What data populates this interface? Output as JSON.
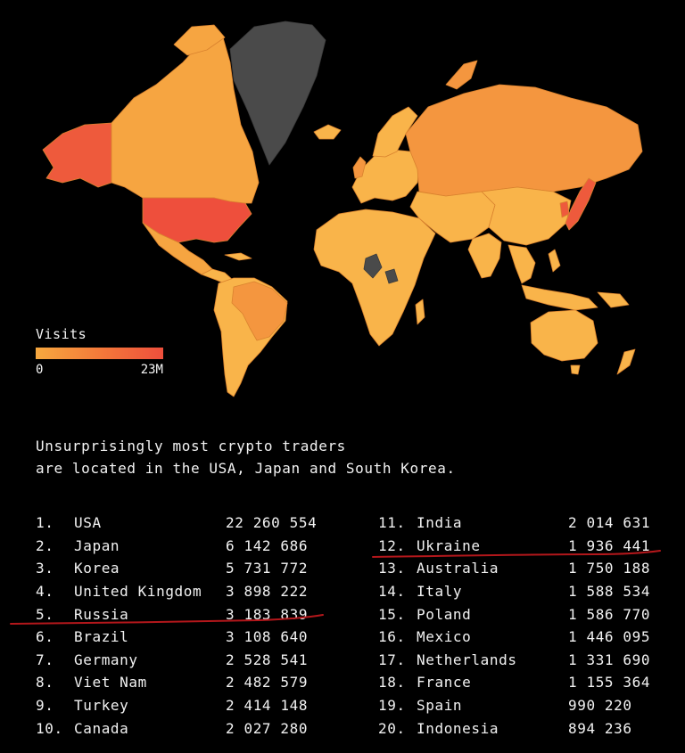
{
  "legend": {
    "title": "Visits",
    "min_label": "0",
    "max_label": "23M",
    "gradient_colors": [
      "#f6a83f",
      "#f47a3a",
      "#ee4f3c"
    ]
  },
  "map_colors": {
    "ocean": "#000000",
    "low": "#f9b44a",
    "mid": "#f4963f",
    "high": "#ee4f3c",
    "no_data": "#4a4a4a",
    "border": "#d9822e"
  },
  "caption": {
    "line1": "Unsurprisingly most crypto traders",
    "line2": "are located in the USA, Japan and South Korea."
  },
  "rankings": {
    "left": [
      {
        "rank": "1.",
        "country": "USA",
        "visits": "22 260 554"
      },
      {
        "rank": "2.",
        "country": "Japan",
        "visits": "6 142 686"
      },
      {
        "rank": "3.",
        "country": "Korea",
        "visits": "5 731 772"
      },
      {
        "rank": "4.",
        "country": "United Kingdom",
        "visits": "3 898 222"
      },
      {
        "rank": "5.",
        "country": "Russia",
        "visits": "3 183 839"
      },
      {
        "rank": "6.",
        "country": "Brazil",
        "visits": "3 108 640"
      },
      {
        "rank": "7.",
        "country": "Germany",
        "visits": "2 528 541"
      },
      {
        "rank": "8.",
        "country": "Viet Nam",
        "visits": "2 482 579"
      },
      {
        "rank": "9.",
        "country": "Turkey",
        "visits": "2 414 148"
      },
      {
        "rank": "10.",
        "country": "Canada",
        "visits": "2 027 280"
      }
    ],
    "right": [
      {
        "rank": "11.",
        "country": "India",
        "visits": "2 014 631"
      },
      {
        "rank": "12.",
        "country": "Ukraine",
        "visits": "1 936 441"
      },
      {
        "rank": "13.",
        "country": "Australia",
        "visits": "1 750 188"
      },
      {
        "rank": "14.",
        "country": "Italy",
        "visits": "1 588 534"
      },
      {
        "rank": "15.",
        "country": "Poland",
        "visits": "1 586 770"
      },
      {
        "rank": "16.",
        "country": "Mexico",
        "visits": "1 446 095"
      },
      {
        "rank": "17.",
        "country": "Netherlands",
        "visits": "1 331 690"
      },
      {
        "rank": "18.",
        "country": "France",
        "visits": "1 155 364"
      },
      {
        "rank": "19.",
        "country": "Spain",
        "visits": "990 220"
      },
      {
        "rank": "20.",
        "country": "Indonesia",
        "visits": "894 236"
      }
    ]
  },
  "annotations": {
    "underline_color": "#b3171b",
    "underlined_countries": [
      "Russia",
      "Ukraine"
    ]
  }
}
